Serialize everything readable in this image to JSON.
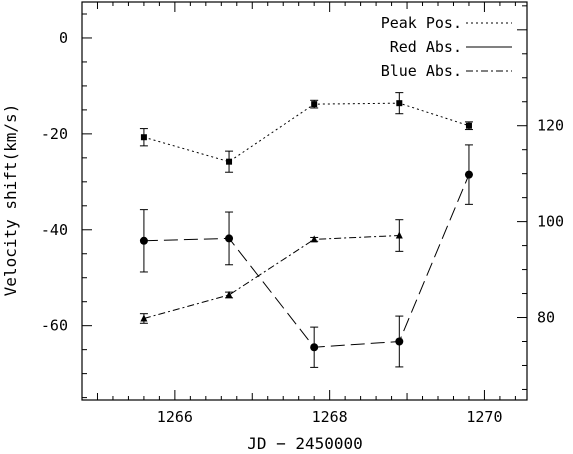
{
  "chart_data": {
    "type": "line",
    "xlabel": "JD − 2450000",
    "ylabel": "Velocity shift(km/s)",
    "x_ticks": [
      1266,
      1268,
      1270
    ],
    "xlim": [
      1264.8,
      1270.55
    ],
    "ylim": [
      -75.5,
      7.5
    ],
    "y_ticks": [
      0,
      -20,
      -40,
      -60
    ],
    "y2_ticks": [
      120,
      100,
      80
    ],
    "y2_offset": 138.3,
    "legend_position": "top-right",
    "grid": false,
    "series": [
      {
        "name": "Peak Pos.",
        "axis": "left",
        "marker": "square",
        "dash": "2,3",
        "legend_dash": "2,3",
        "points": [
          {
            "x": 1265.6,
            "y": -20.7,
            "err": 1.8
          },
          {
            "x": 1266.7,
            "y": -25.8,
            "err": 2.2
          },
          {
            "x": 1267.8,
            "y": -13.8,
            "err": 0.8
          },
          {
            "x": 1268.9,
            "y": -13.6,
            "err": 2.2
          },
          {
            "x": 1269.8,
            "y": -18.3,
            "err": 0.8
          }
        ]
      },
      {
        "name": "Red Abs.",
        "axis": "left",
        "marker": "circle",
        "dash": "14,6",
        "legend_dash": "",
        "points": [
          {
            "x": 1265.6,
            "y": -42.3,
            "err": 6.5
          },
          {
            "x": 1266.7,
            "y": -41.8,
            "err": 5.5
          },
          {
            "x": 1267.8,
            "y": -64.5,
            "err": 4.2
          },
          {
            "x": 1268.9,
            "y": -63.3,
            "err": 5.3
          },
          {
            "x": 1269.8,
            "y": -28.5,
            "err": 6.2
          }
        ]
      },
      {
        "name": "Blue Abs.",
        "axis": "right",
        "marker": "triangle",
        "dash": "7,3,2,3",
        "legend_dash": "7,3,2,3",
        "points": [
          {
            "x": 1265.6,
            "y": 79.8,
            "err": 1.0
          },
          {
            "x": 1266.7,
            "y": 84.7,
            "err": 0.6
          },
          {
            "x": 1267.8,
            "y": 96.3,
            "err": 0.4
          },
          {
            "x": 1268.9,
            "y": 97.1,
            "err": 3.3
          }
        ]
      }
    ]
  }
}
